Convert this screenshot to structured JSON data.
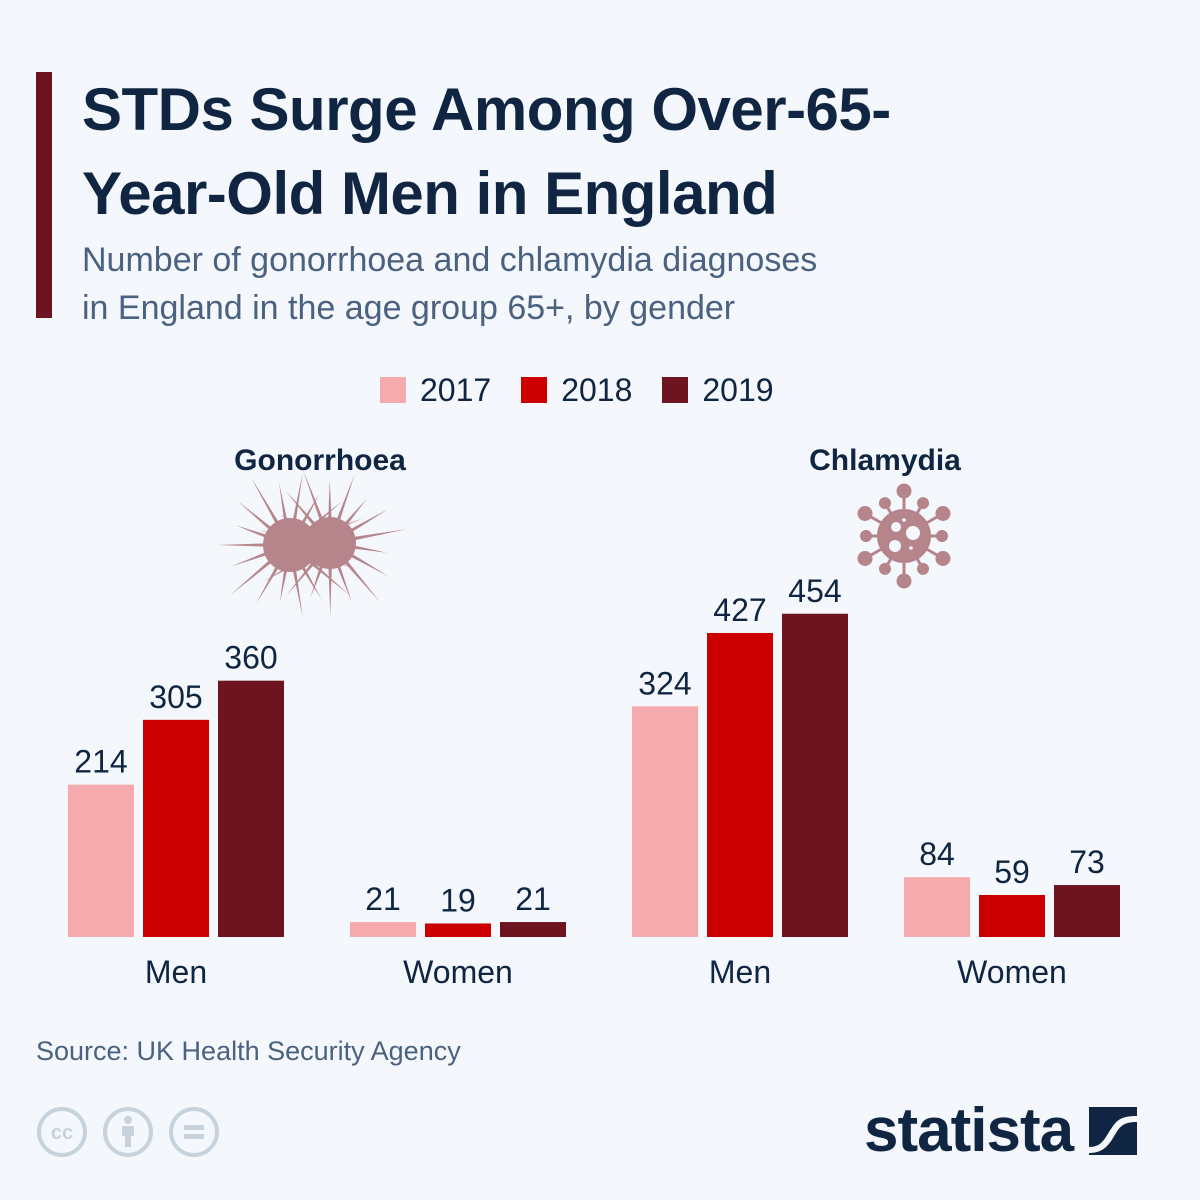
{
  "header": {
    "title_line1": "STDs Surge Among Over-65-",
    "title_line2": "Year-Old Men in England",
    "subtitle_line1": "Number of gonorrhoea and chlamydia diagnoses",
    "subtitle_line2": "in England in the age group 65+, by gender",
    "accent_color": "#6e1420"
  },
  "legend": [
    {
      "label": "2017",
      "color": "#f5abae"
    },
    {
      "label": "2018",
      "color": "#cc0000"
    },
    {
      "label": "2019",
      "color": "#6e1420"
    }
  ],
  "chart_data": [
    {
      "type": "bar",
      "title": "Gonorrhoea",
      "icon": "gonorrhoea-bacteria-icon",
      "categories": [
        "Men",
        "Women"
      ],
      "series": [
        {
          "name": "2017",
          "values": [
            214,
            21
          ]
        },
        {
          "name": "2018",
          "values": [
            305,
            19
          ]
        },
        {
          "name": "2019",
          "values": [
            360,
            21
          ]
        }
      ],
      "xlabel": "",
      "ylabel": "",
      "ylim": [
        0,
        500
      ],
      "grid": false,
      "legend": "top-center"
    },
    {
      "type": "bar",
      "title": "Chlamydia",
      "icon": "chlamydia-virus-icon",
      "categories": [
        "Men",
        "Women"
      ],
      "series": [
        {
          "name": "2017",
          "values": [
            324,
            84
          ]
        },
        {
          "name": "2018",
          "values": [
            427,
            59
          ]
        },
        {
          "name": "2019",
          "values": [
            454,
            73
          ]
        }
      ],
      "xlabel": "",
      "ylabel": "",
      "ylim": [
        0,
        500
      ],
      "grid": false,
      "legend": "top-center"
    }
  ],
  "footer": {
    "source": "Source: UK Health Security Agency",
    "license_icons": [
      "cc-icon",
      "attribution-icon",
      "no-derivatives-icon"
    ],
    "brand": "statista"
  }
}
